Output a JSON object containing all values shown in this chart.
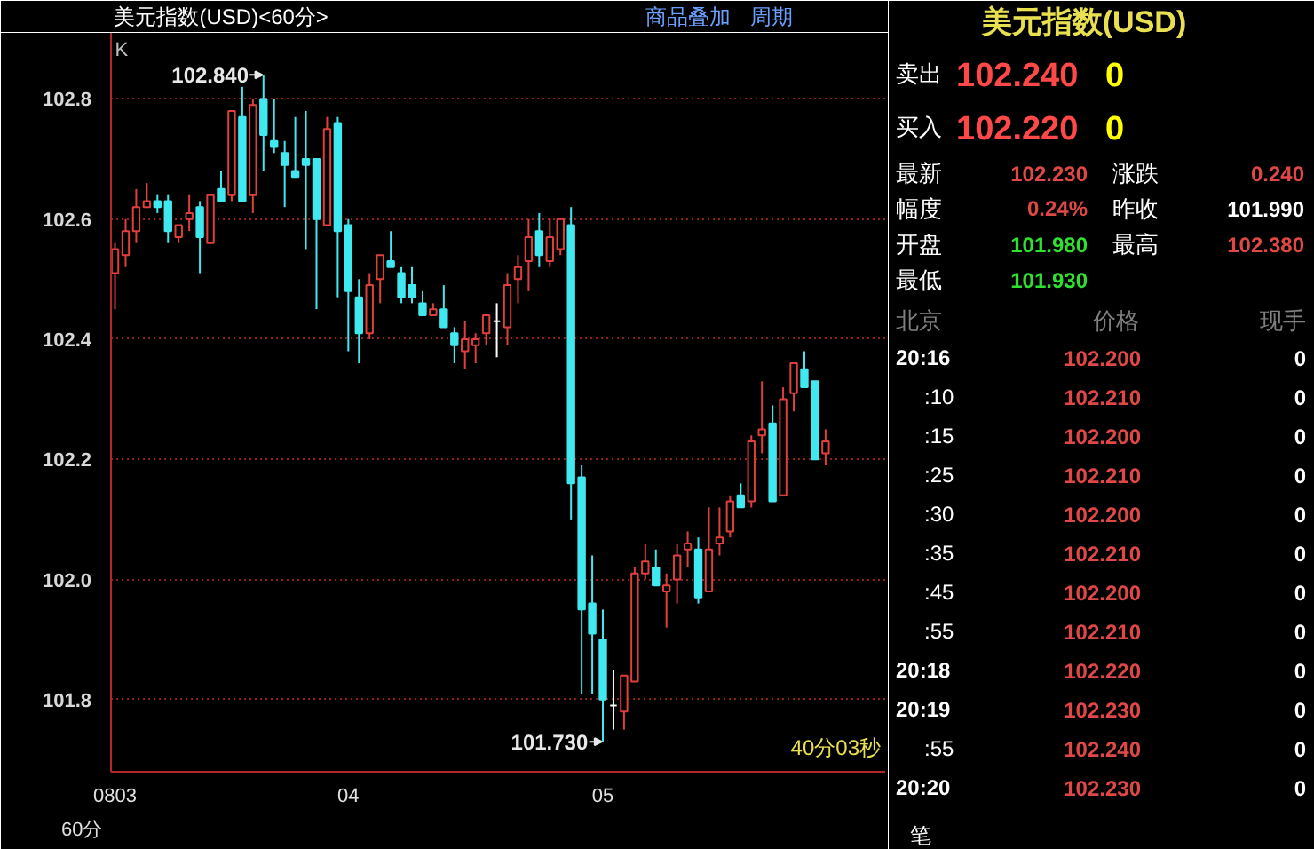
{
  "chart_data": [
    {
      "type": "candlestick",
      "title": "美元指数(USD)<60分>",
      "xlabel": "60分",
      "categories": [
        "0803",
        null,
        null,
        null,
        null,
        null,
        null,
        null,
        null,
        null,
        null,
        null,
        null,
        null,
        null,
        null,
        null,
        null,
        null,
        null,
        null,
        null,
        "04",
        null,
        null,
        null,
        null,
        null,
        null,
        null,
        null,
        null,
        null,
        null,
        null,
        null,
        null,
        null,
        null,
        null,
        null,
        null,
        null,
        null,
        null,
        null,
        "05",
        null,
        null,
        null,
        null,
        null,
        null,
        null,
        null,
        null,
        null,
        null,
        null,
        null,
        null,
        null,
        null,
        null,
        null,
        null,
        null,
        null
      ],
      "ohlc": [
        [
          102.51,
          102.56,
          102.45,
          102.55
        ],
        [
          102.54,
          102.6,
          102.52,
          102.58
        ],
        [
          102.58,
          102.65,
          102.56,
          102.62
        ],
        [
          102.62,
          102.66,
          102.62,
          102.63
        ],
        [
          102.63,
          102.64,
          102.61,
          102.62
        ],
        [
          102.63,
          102.64,
          102.56,
          102.58
        ],
        [
          102.57,
          102.59,
          102.56,
          102.59
        ],
        [
          102.6,
          102.64,
          102.58,
          102.61
        ],
        [
          102.62,
          102.63,
          102.51,
          102.57
        ],
        [
          102.56,
          102.64,
          102.56,
          102.64
        ],
        [
          102.65,
          102.68,
          102.63,
          102.63
        ],
        [
          102.64,
          102.78,
          102.63,
          102.78
        ],
        [
          102.77,
          102.82,
          102.63,
          102.63
        ],
        [
          102.64,
          102.8,
          102.61,
          102.79
        ],
        [
          102.8,
          102.84,
          102.68,
          102.74
        ],
        [
          102.73,
          102.8,
          102.71,
          102.72
        ],
        [
          102.71,
          102.73,
          102.62,
          102.69
        ],
        [
          102.68,
          102.77,
          102.67,
          102.67
        ],
        [
          102.7,
          102.78,
          102.55,
          102.69
        ],
        [
          102.7,
          102.7,
          102.45,
          102.6
        ],
        [
          102.59,
          102.77,
          102.59,
          102.75
        ],
        [
          102.76,
          102.77,
          102.47,
          102.58
        ],
        [
          102.59,
          102.6,
          102.38,
          102.48
        ],
        [
          102.47,
          102.5,
          102.36,
          102.41
        ],
        [
          102.41,
          102.51,
          102.4,
          102.49
        ],
        [
          102.5,
          102.54,
          102.46,
          102.54
        ],
        [
          102.53,
          102.58,
          102.52,
          102.52
        ],
        [
          102.51,
          102.52,
          102.46,
          102.47
        ],
        [
          102.49,
          102.52,
          102.46,
          102.47
        ],
        [
          102.46,
          102.48,
          102.44,
          102.44
        ],
        [
          102.44,
          102.46,
          102.44,
          102.45
        ],
        [
          102.45,
          102.49,
          102.42,
          102.42
        ],
        [
          102.41,
          102.42,
          102.36,
          102.39
        ],
        [
          102.38,
          102.43,
          102.35,
          102.4
        ],
        [
          102.39,
          102.41,
          102.36,
          102.4
        ],
        [
          102.41,
          102.44,
          102.39,
          102.44
        ],
        [
          102.43,
          102.46,
          102.37,
          102.43
        ],
        [
          102.42,
          102.51,
          102.39,
          102.49
        ],
        [
          102.5,
          102.54,
          102.46,
          102.52
        ],
        [
          102.53,
          102.6,
          102.48,
          102.57
        ],
        [
          102.58,
          102.61,
          102.52,
          102.54
        ],
        [
          102.53,
          102.6,
          102.52,
          102.57
        ],
        [
          102.55,
          102.6,
          102.54,
          102.6
        ],
        [
          102.59,
          102.62,
          102.1,
          102.16
        ],
        [
          102.17,
          102.19,
          101.81,
          101.95
        ],
        [
          101.96,
          102.04,
          101.81,
          101.91
        ],
        [
          101.9,
          101.95,
          101.73,
          101.8
        ],
        [
          101.79,
          101.85,
          101.75,
          101.79
        ],
        [
          101.78,
          101.84,
          101.75,
          101.84
        ],
        [
          101.83,
          102.02,
          101.83,
          102.01
        ],
        [
          102.01,
          102.06,
          102.0,
          102.03
        ],
        [
          102.02,
          102.05,
          101.99,
          101.99
        ],
        [
          101.98,
          102.01,
          101.92,
          101.99
        ],
        [
          102.0,
          102.06,
          101.96,
          102.04
        ],
        [
          102.05,
          102.08,
          102.02,
          102.06
        ],
        [
          102.05,
          102.07,
          101.96,
          101.97
        ],
        [
          101.98,
          102.12,
          101.98,
          102.05
        ],
        [
          102.06,
          102.12,
          102.04,
          102.07
        ],
        [
          102.08,
          102.14,
          102.07,
          102.13
        ],
        [
          102.14,
          102.16,
          102.12,
          102.12
        ],
        [
          102.13,
          102.24,
          102.12,
          102.23
        ],
        [
          102.24,
          102.33,
          102.21,
          102.25
        ],
        [
          102.26,
          102.29,
          102.13,
          102.13
        ],
        [
          102.14,
          102.32,
          102.14,
          102.3
        ],
        [
          102.31,
          102.36,
          102.28,
          102.36
        ],
        [
          102.35,
          102.38,
          102.32,
          102.32
        ],
        [
          102.33,
          102.33,
          102.2,
          102.2
        ],
        [
          102.21,
          102.25,
          102.19,
          102.23
        ]
      ],
      "colors": [
        "#e0403c",
        "#e0403c",
        "#e0403c",
        "#e0403c",
        "#40e8f0",
        "#40e8f0",
        "#e0403c",
        "#e0403c",
        "#40e8f0",
        "#e0403c",
        "#40e8f0",
        "#e0403c",
        "#40e8f0",
        "#e0403c",
        "#40e8f0",
        "#40e8f0",
        "#40e8f0",
        "#40e8f0",
        "#40e8f0",
        "#40e8f0",
        "#e0403c",
        "#40e8f0",
        "#40e8f0",
        "#40e8f0",
        "#e0403c",
        "#e0403c",
        "#40e8f0",
        "#40e8f0",
        "#40e8f0",
        "#40e8f0",
        "#e0403c",
        "#40e8f0",
        "#40e8f0",
        "#e0403c",
        "#e0403c",
        "#e0403c",
        "#ffffff",
        "#e0403c",
        "#e0403c",
        "#e0403c",
        "#40e8f0",
        "#e0403c",
        "#e0403c",
        "#40e8f0",
        "#40e8f0",
        "#40e8f0",
        "#40e8f0",
        "#ffffff",
        "#e0403c",
        "#e0403c",
        "#e0403c",
        "#40e8f0",
        "#e0403c",
        "#e0403c",
        "#e0403c",
        "#40e8f0",
        "#e0403c",
        "#e0403c",
        "#e0403c",
        "#40e8f0",
        "#e0403c",
        "#e0403c",
        "#40e8f0",
        "#e0403c",
        "#e0403c",
        "#40e8f0",
        "#40e8f0",
        "#e0403c"
      ],
      "ylim": [
        101.68,
        102.91
      ],
      "yticks": [
        {
          "value": 101.8,
          "label": "101.8"
        },
        {
          "value": 102.0,
          "label": "102.0"
        },
        {
          "value": 102.2,
          "label": "102.2"
        },
        {
          "value": 102.4,
          "label": "102.4"
        },
        {
          "value": 102.6,
          "label": "102.6"
        },
        {
          "value": 102.8,
          "label": "102.8"
        }
      ],
      "grid": "y",
      "annotations": [
        "K",
        "40分03秒",
        "102.840",
        "101.730",
        "商品叠加",
        "周期"
      ]
    },
    {
      "type": "other",
      "title": "美元指数(USD)",
      "annotations": [
        "卖出",
        "102.240",
        "0",
        "买入",
        "102.220",
        "0",
        "最新",
        "102.230",
        "涨跌",
        "0.240",
        "幅度",
        "0.24%",
        "昨收",
        "101.990",
        "开盘",
        "101.980",
        "最高",
        "102.380",
        "最低",
        "101.930",
        "北京",
        "价格",
        "现手",
        "20:16",
        "102.200",
        "0",
        ":10",
        "102.210",
        "0",
        ":15",
        "102.200",
        "0",
        ":25",
        "102.210",
        "0",
        ":30",
        "102.200",
        "0",
        ":35",
        "102.210",
        "0",
        ":45",
        "102.200",
        "0",
        ":55",
        "102.210",
        "0",
        "20:18",
        "102.220",
        "0",
        "20:19",
        "102.230",
        "0",
        ":55",
        "102.240",
        "0",
        "20:20",
        "102.230",
        "0",
        "笔"
      ],
      "colors": [
        "#ffffff",
        "#ff4848",
        "#ffff00",
        "#ffffff",
        "#ff4848",
        "#ffff00",
        "#ffffff",
        "#e04848",
        "#ffffff",
        "#e04848",
        "#ffffff",
        "#e04848",
        "#ffffff",
        "#ffffff",
        "#ffffff",
        "#30e030",
        "#ffffff",
        "#e04848",
        "#ffffff",
        "#30e030",
        "#808080",
        "#808080",
        "#808080",
        "#ffffff",
        "#e04848",
        "#ffffff",
        "#ffffff",
        "#e04848",
        "#ffffff",
        "#ffffff",
        "#e04848",
        "#ffffff",
        "#ffffff",
        "#e04848",
        "#ffffff",
        "#ffffff",
        "#e04848",
        "#ffffff",
        "#ffffff",
        "#e04848",
        "#ffffff",
        "#ffffff",
        "#e04848",
        "#ffffff",
        "#ffffff",
        "#e04848",
        "#ffffff",
        "#ffffff",
        "#e04848",
        "#ffffff",
        "#ffffff",
        "#e04848",
        "#ffffff",
        "#ffffff",
        "#e04848",
        "#ffffff",
        "#ffffff",
        "#e04848",
        "#ffffff",
        "#ffffff"
      ]
    }
  ]
}
